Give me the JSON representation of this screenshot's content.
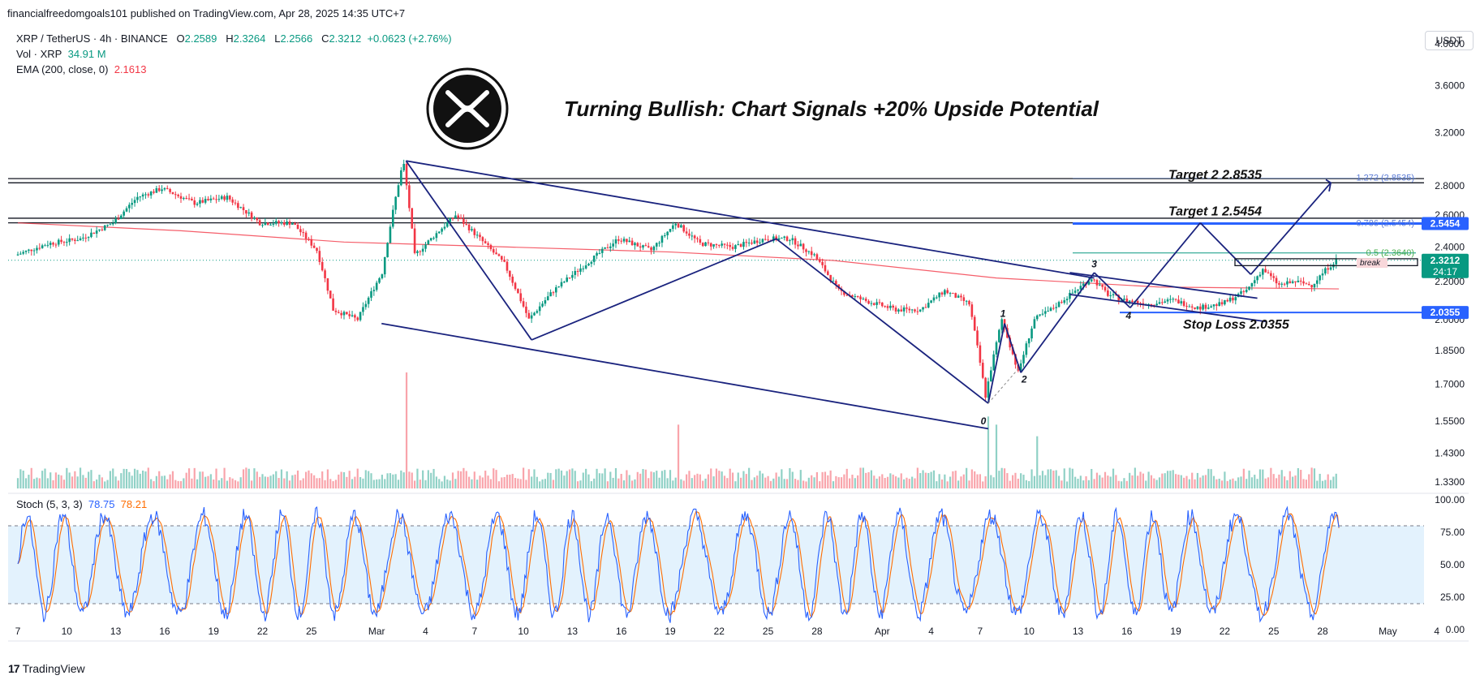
{
  "header": {
    "published": "financialfreedomgoals101 published on TradingView.com, Apr 28, 2025 14:35 UTC+7"
  },
  "legend": {
    "symbol": "XRP / TetherUS · 4h · BINANCE",
    "o_label": "O",
    "o_value": "2.2589",
    "h_label": "H",
    "h_value": "2.3264",
    "l_label": "L",
    "l_value": "2.2566",
    "c_label": "C",
    "c_value": "2.3212",
    "change": "+0.0623 (+2.76%)",
    "vol_label": "Vol · XRP",
    "vol_value": "34.91 M",
    "ema_label": "EMA (200, close, 0)",
    "ema_value": "2.1613"
  },
  "currency_button": "USDT",
  "footer": {
    "brand": "TradingView",
    "mark": "17"
  },
  "colors": {
    "up": "#089981",
    "down": "#f23645",
    "ema": "#f23645",
    "drawing": "#1a237e",
    "blue_line": "#2962ff",
    "stoch_k": "#2962ff",
    "stoch_d": "#ff6d00",
    "stoch_band": "#e3f2fd"
  },
  "chart_data": [
    {
      "type": "candlestick",
      "title": "Turning Bullish: Chart Signals +20% Upside Potential",
      "symbol": "XRP / TetherUS",
      "interval": "4h",
      "y_scale": "log",
      "ylim": [
        1.3,
        4.2
      ],
      "y_ticks": [
        "4.0000",
        "3.6000",
        "3.2000",
        "2.8000",
        "2.6000",
        "2.4000",
        "2.2000",
        "2.0000",
        "1.8500",
        "1.7000",
        "1.5500",
        "1.4300",
        "1.3300"
      ],
      "y_tick_values": [
        4.0,
        3.6,
        3.2,
        2.8,
        2.6,
        2.4,
        2.2,
        2.0,
        1.85,
        1.7,
        1.55,
        1.43,
        1.33
      ],
      "x_ticks": [
        "7",
        "10",
        "13",
        "16",
        "19",
        "22",
        "25",
        "Mar",
        "4",
        "7",
        "10",
        "13",
        "16",
        "19",
        "22",
        "25",
        "28",
        "Apr",
        "4",
        "7",
        "10",
        "13",
        "16",
        "19",
        "22",
        "25",
        "28",
        "May",
        "4"
      ],
      "x_tick_days": [
        0,
        3,
        6,
        9,
        12,
        15,
        18,
        22,
        25,
        28,
        31,
        34,
        37,
        40,
        43,
        46,
        49,
        53,
        56,
        59,
        62,
        65,
        68,
        71,
        74,
        77,
        80,
        84,
        87
      ],
      "price_path": [
        [
          0,
          2.35
        ],
        [
          2,
          2.42
        ],
        [
          4,
          2.45
        ],
        [
          6,
          2.55
        ],
        [
          7.5,
          2.72
        ],
        [
          9,
          2.78
        ],
        [
          11,
          2.68
        ],
        [
          13,
          2.72
        ],
        [
          15,
          2.55
        ],
        [
          17,
          2.55
        ],
        [
          18.5,
          2.38
        ],
        [
          19.5,
          2.05
        ],
        [
          21,
          2.0
        ],
        [
          22.5,
          2.25
        ],
        [
          23.8,
          2.98
        ],
        [
          24.5,
          2.35
        ],
        [
          26,
          2.5
        ],
        [
          27,
          2.6
        ],
        [
          28.5,
          2.45
        ],
        [
          30,
          2.3
        ],
        [
          31.5,
          2.0
        ],
        [
          33,
          2.15
        ],
        [
          35,
          2.3
        ],
        [
          37,
          2.45
        ],
        [
          39,
          2.38
        ],
        [
          40.5,
          2.55
        ],
        [
          42,
          2.42
        ],
        [
          44,
          2.4
        ],
        [
          46,
          2.45
        ],
        [
          47.5,
          2.45
        ],
        [
          49,
          2.35
        ],
        [
          50.5,
          2.15
        ],
        [
          52,
          2.1
        ],
        [
          54,
          2.05
        ],
        [
          55.5,
          2.05
        ],
        [
          57,
          2.15
        ],
        [
          58.5,
          2.08
        ],
        [
          59.5,
          1.65
        ],
        [
          60.5,
          2.0
        ],
        [
          61.5,
          1.75
        ],
        [
          62.5,
          2.0
        ],
        [
          63.5,
          2.05
        ],
        [
          65,
          2.15
        ],
        [
          66,
          2.22
        ],
        [
          67,
          2.13
        ],
        [
          68,
          2.1
        ],
        [
          69.5,
          2.08
        ],
        [
          71,
          2.1
        ],
        [
          72.5,
          2.06
        ],
        [
          74,
          2.08
        ],
        [
          75.5,
          2.15
        ],
        [
          76.5,
          2.27
        ],
        [
          77.5,
          2.18
        ],
        [
          78.5,
          2.2
        ],
        [
          79.5,
          2.18
        ],
        [
          80.5,
          2.28
        ],
        [
          81,
          2.3212
        ]
      ],
      "volume_spikes": [
        {
          "day": 23.8,
          "value": 1.0
        },
        {
          "day": 40.5,
          "value": 0.55
        },
        {
          "day": 59.5,
          "value": 0.62
        },
        {
          "day": 60,
          "value": 0.55
        },
        {
          "day": 62.5,
          "value": 0.45
        }
      ],
      "horizontal_levels": [
        {
          "price": 2.85,
          "label": ""
        },
        {
          "price": 2.82,
          "label": ""
        },
        {
          "price": 2.58,
          "label": ""
        },
        {
          "price": 2.55,
          "label": ""
        }
      ],
      "ema200_path": [
        [
          0,
          2.55
        ],
        [
          10,
          2.5
        ],
        [
          20,
          2.43
        ],
        [
          30,
          2.4
        ],
        [
          40,
          2.37
        ],
        [
          50,
          2.32
        ],
        [
          60,
          2.22
        ],
        [
          70,
          2.17
        ],
        [
          81,
          2.16
        ]
      ],
      "annotations": {
        "target2": "Target 2  2.8535",
        "target1": "Target 1  2.5454",
        "stop_loss": "Stop Loss 2.0355",
        "fib_1272": "1.272 (2.8535)",
        "fib_05": "0.5 (2.3640)",
        "fib_0786": "0.786 (2.5454)",
        "break_label": "break",
        "wave_labels": [
          "0",
          "1",
          "2",
          "3",
          "4"
        ]
      },
      "price_badges": [
        {
          "text": "2.5454",
          "price": 2.5454,
          "color": "#2962ff"
        },
        {
          "text": "2.3212",
          "sub": "24:17",
          "price": 2.3212,
          "color": "#089981"
        },
        {
          "text": "2.0355",
          "price": 2.0355,
          "color": "#2962ff"
        }
      ]
    },
    {
      "type": "line",
      "title": "Stoch (5, 3, 3)",
      "k_value": "78.75",
      "d_value": "78.21",
      "ylim": [
        0,
        100
      ],
      "y_ticks": [
        "100.00",
        "75.00",
        "50.00",
        "25.00",
        "0.00"
      ],
      "y_tick_values": [
        100,
        75,
        50,
        25,
        0
      ],
      "band": [
        20,
        80
      ],
      "cycles_per_day": 0.5,
      "last_k": 78.75,
      "last_d": 78.21
    }
  ]
}
